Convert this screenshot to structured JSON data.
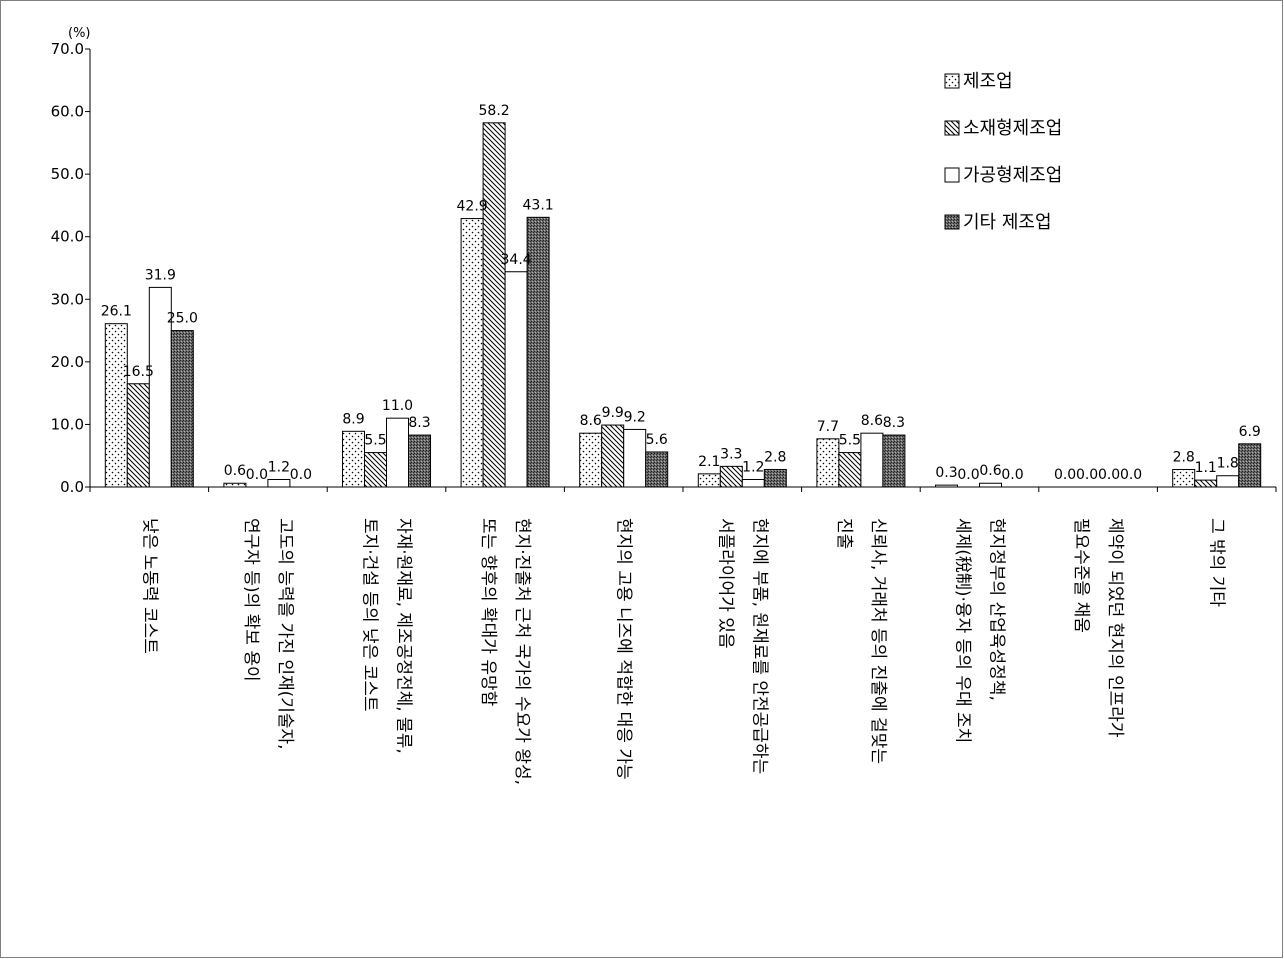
{
  "chart_data": {
    "type": "bar",
    "title": "",
    "xlabel": "",
    "ylabel": "",
    "unit": "(%)",
    "ylim": [
      0,
      70
    ],
    "yticks": [
      "0.0",
      "10.0",
      "20.0",
      "30.0",
      "40.0",
      "50.0",
      "60.0",
      "70.0"
    ],
    "grid": false,
    "legend_position": "top-right",
    "categories": [
      [
        "낮은 노동력 코스트"
      ],
      [
        "고도의 능력을 가진 인재(기술자,",
        "연구자 등)의 확보 용이"
      ],
      [
        "자재·원재료, 제조공정전체, 물류,",
        "토지·건설 등의 낮은 코스트"
      ],
      [
        "현지·진출처 근처 국가의 수요가 왕성,",
        "또는 향후의 확대가 유망함"
      ],
      [
        "현지의 고용 니즈에 적합한 대응 가능"
      ],
      [
        "현지에 부품, 원재료를 안전공급하는",
        "서플라이어가 있음"
      ],
      [
        "신뢰사, 거래처 등의 진출에 걸맞는",
        "진출"
      ],
      [
        "현지정부의 산업육성정책,",
        "세제(稅制)·융자 등의 우대 조치"
      ],
      [
        "제약이 되었던 현지의 인프라가",
        "필요수준을 채움"
      ],
      [
        "그 밖의 기타"
      ]
    ],
    "series": [
      {
        "name": "제조업",
        "pattern": "dots",
        "color": "#ffffff",
        "values": [
          26.1,
          0.6,
          8.9,
          42.9,
          8.6,
          2.1,
          7.7,
          0.3,
          0.0,
          2.8
        ],
        "labels": [
          "26.1",
          "0.6",
          "8.9",
          "42.9",
          "8.6",
          "2.1",
          "7.7",
          "0.3",
          "0.0",
          "2.8"
        ]
      },
      {
        "name": "소재형제조업",
        "pattern": "hatch",
        "color": "#ffffff",
        "values": [
          16.5,
          0.0,
          5.5,
          58.2,
          9.9,
          3.3,
          5.5,
          0.0,
          0.0,
          1.1
        ],
        "labels": [
          "16.5",
          "0.0",
          "5.5",
          "58.2",
          "9.9",
          "3.3",
          "5.5",
          "0.0",
          "0.0",
          "1.1"
        ]
      },
      {
        "name": "가공형제조업",
        "pattern": "solid",
        "color": "#ffffff",
        "values": [
          31.9,
          1.2,
          11.0,
          34.4,
          9.2,
          1.2,
          8.6,
          0.6,
          0.0,
          1.8
        ],
        "labels": [
          "31.9",
          "1.2",
          "11.0",
          "34.4",
          "9.2",
          "1.2",
          "8.6",
          "0.6",
          "0.0",
          "1.8"
        ]
      },
      {
        "name": "기타 제조업",
        "pattern": "dense",
        "color": "#555555",
        "values": [
          25.0,
          0.0,
          8.3,
          43.1,
          5.6,
          2.8,
          8.3,
          0.0,
          0.0,
          6.9
        ],
        "labels": [
          "25.0",
          "0.0",
          "8.3",
          "43.1",
          "5.6",
          "2.8",
          "8.3",
          "0.0",
          "0.0",
          "6.9"
        ]
      }
    ]
  }
}
